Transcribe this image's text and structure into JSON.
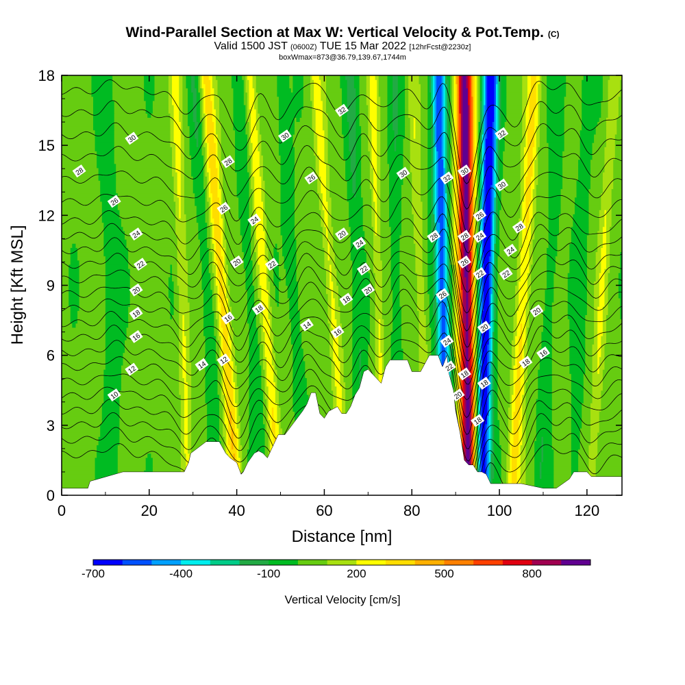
{
  "chart_data": {
    "type": "heatmap",
    "title": "Wind-Parallel Section at Max W: Vertical Velocity & Pot.Temp.",
    "title_mark": "(C)",
    "subtitle_valid": "Valid 1500 JST",
    "subtitle_utc": "(0600Z)",
    "subtitle_date": "TUE 15 Mar 2022",
    "subtitle_fcst": "[12hrFcst@2230z]",
    "subtitle_box": "boxWmax=873@36.79,139.67,1744m",
    "xlabel": "Distance [nm]",
    "ylabel": "Height [Kft MSL]",
    "xlim": [
      0,
      128
    ],
    "ylim": [
      0,
      18
    ],
    "x_ticks": [
      "0",
      "20",
      "40",
      "60",
      "80",
      "100",
      "120"
    ],
    "y_ticks": [
      "0",
      "3",
      "6",
      "9",
      "12",
      "15",
      "18"
    ],
    "colorbar_label": "Vertical Velocity [cm/s]",
    "colorbar_ticks": [
      "-700",
      "-400",
      "-100",
      "200",
      "500",
      "800"
    ],
    "colorbar_levels": [
      -700,
      -600,
      -500,
      -400,
      -300,
      -200,
      -100,
      0,
      100,
      200,
      300,
      400,
      500,
      600,
      700,
      800,
      900
    ],
    "colorbar_colors": [
      "#0000ff",
      "#0050ff",
      "#00a0ff",
      "#00eeee",
      "#00cc88",
      "#22aa44",
      "#00bb22",
      "#66cc11",
      "#a8e010",
      "#ffff00",
      "#ffdd00",
      "#ffb000",
      "#ff8000",
      "#ff4000",
      "#e00010",
      "#a00050",
      "#600090"
    ],
    "terrain": {
      "x": [
        0,
        6,
        6.5,
        14,
        28,
        29,
        29.5,
        33,
        34,
        36,
        37.5,
        38.5,
        40,
        41,
        41.5,
        42.5,
        44,
        45,
        46,
        47,
        48.5,
        49.5,
        51,
        53,
        55,
        56,
        57,
        58,
        59,
        60,
        61,
        62,
        63,
        64,
        65,
        66,
        67,
        68,
        69,
        70,
        71,
        72,
        73,
        74,
        75,
        79,
        80,
        82,
        84,
        85,
        86,
        87,
        88,
        88.5,
        89.5,
        90,
        91,
        92,
        93,
        94,
        95,
        96,
        97,
        98,
        99,
        100,
        101,
        102,
        103,
        104,
        105,
        110,
        113,
        116,
        117,
        120,
        121,
        128
      ],
      "y": [
        0.3,
        0.3,
        0.6,
        1.0,
        1.0,
        1.4,
        1.8,
        2.3,
        2.3,
        2.3,
        1.8,
        1.6,
        1.4,
        0.9,
        1.0,
        1.4,
        1.8,
        1.9,
        1.8,
        1.6,
        2.2,
        2.6,
        2.6,
        3.1,
        3.6,
        3.9,
        4.4,
        4.4,
        3.5,
        3.3,
        3.6,
        3.7,
        3.8,
        3.5,
        3.5,
        3.8,
        4.3,
        4.6,
        5.3,
        5.4,
        5.2,
        5.0,
        4.8,
        5.5,
        5.8,
        5.8,
        5.3,
        5.3,
        6.0,
        6.0,
        6.0,
        5.5,
        6.0,
        5.2,
        4.5,
        3.6,
        2.7,
        1.5,
        1.3,
        1.3,
        1.0,
        1.0,
        0.9,
        0.5,
        0.5,
        0.5,
        0.5,
        0.5,
        0.5,
        0.5,
        0.5,
        0.3,
        0.3,
        0.7,
        1.0,
        1.0,
        0.8,
        0.8
      ]
    },
    "updraft_bands": [
      {
        "x_base": 93,
        "x_top": 92,
        "half_width": 2.0,
        "w": 900
      },
      {
        "x_base": 40,
        "x_top": 33,
        "half_width": 1.5,
        "w": 350
      },
      {
        "x_base": 49.5,
        "x_top": 43,
        "half_width": 1.3,
        "w": 250
      },
      {
        "x_base": 103,
        "x_top": 108,
        "half_width": 1.5,
        "w": 300
      },
      {
        "x_base": 65,
        "x_top": 58,
        "half_width": 1.3,
        "w": 200
      },
      {
        "x_base": 29,
        "x_top": 26,
        "half_width": 1.2,
        "w": 180
      },
      {
        "x_base": 73.5,
        "x_top": 71,
        "half_width": 1.0,
        "w": 200
      },
      {
        "x_base": 84,
        "x_top": 80,
        "half_width": 1.2,
        "w": 150
      },
      {
        "x_base": 121,
        "x_top": 126,
        "half_width": 1.2,
        "w": 150
      }
    ],
    "downdraft_bands": [
      {
        "x_base": 88,
        "x_top": 86,
        "half_width": 1.7,
        "w": -600
      },
      {
        "x_base": 96,
        "x_top": 98,
        "half_width": 1.8,
        "w": -750
      },
      {
        "x_base": 12,
        "x_top": 10,
        "half_width": 2.0,
        "w": -100
      },
      {
        "x_base": 36,
        "x_top": 30,
        "half_width": 1.5,
        "w": -120
      },
      {
        "x_base": 46,
        "x_top": 40,
        "half_width": 1.5,
        "w": -120
      },
      {
        "x_base": 56,
        "x_top": 50,
        "half_width": 1.5,
        "w": -120
      },
      {
        "x_base": 69,
        "x_top": 66,
        "half_width": 1.5,
        "w": -150
      },
      {
        "x_base": 77,
        "x_top": 76,
        "half_width": 1.5,
        "w": -120
      },
      {
        "x_base": 109,
        "x_top": 114,
        "half_width": 1.5,
        "w": -120
      },
      {
        "x_base": 117,
        "x_top": 120,
        "half_width": 1.5,
        "w": -100
      }
    ],
    "theta_contours": {
      "levels": [
        8,
        9,
        10,
        11,
        12,
        13,
        14,
        15,
        16,
        17,
        18,
        19,
        20,
        21,
        22,
        23,
        24,
        25,
        26,
        27,
        28,
        29,
        30,
        31,
        32,
        33,
        34
      ],
      "labels": [
        {
          "text": "30",
          "x": 16,
          "y": 15.3
        },
        {
          "text": "28",
          "x": 4,
          "y": 13.9
        },
        {
          "text": "26",
          "x": 12,
          "y": 12.6
        },
        {
          "text": "24",
          "x": 17,
          "y": 11.2
        },
        {
          "text": "22",
          "x": 18,
          "y": 9.9
        },
        {
          "text": "20",
          "x": 17,
          "y": 8.8
        },
        {
          "text": "18",
          "x": 17,
          "y": 7.8
        },
        {
          "text": "16",
          "x": 17,
          "y": 6.8
        },
        {
          "text": "12",
          "x": 16,
          "y": 5.4
        },
        {
          "text": "10",
          "x": 12,
          "y": 4.3
        },
        {
          "text": "14",
          "x": 32,
          "y": 5.6
        },
        {
          "text": "12",
          "x": 37,
          "y": 5.8
        },
        {
          "text": "16",
          "x": 38,
          "y": 7.6
        },
        {
          "text": "20",
          "x": 40,
          "y": 10.0
        },
        {
          "text": "26",
          "x": 37,
          "y": 12.3
        },
        {
          "text": "28",
          "x": 38,
          "y": 14.3
        },
        {
          "text": "24",
          "x": 44,
          "y": 11.8
        },
        {
          "text": "22",
          "x": 48,
          "y": 9.9
        },
        {
          "text": "18",
          "x": 45,
          "y": 8.0
        },
        {
          "text": "14",
          "x": 56,
          "y": 7.3
        },
        {
          "text": "16",
          "x": 63,
          "y": 7.0
        },
        {
          "text": "18",
          "x": 65,
          "y": 8.4
        },
        {
          "text": "20",
          "x": 64,
          "y": 11.2
        },
        {
          "text": "26",
          "x": 57,
          "y": 13.6
        },
        {
          "text": "30",
          "x": 51,
          "y": 15.4
        },
        {
          "text": "32",
          "x": 64,
          "y": 16.5
        },
        {
          "text": "24",
          "x": 68,
          "y": 10.8
        },
        {
          "text": "22",
          "x": 69,
          "y": 9.7
        },
        {
          "text": "20",
          "x": 70,
          "y": 8.8
        },
        {
          "text": "30",
          "x": 78,
          "y": 13.8
        },
        {
          "text": "32",
          "x": 88,
          "y": 13.6
        },
        {
          "text": "28",
          "x": 85,
          "y": 11.1
        },
        {
          "text": "26",
          "x": 87,
          "y": 8.6
        },
        {
          "text": "24",
          "x": 88,
          "y": 6.6
        },
        {
          "text": "22",
          "x": 88.5,
          "y": 5.5
        },
        {
          "text": "20",
          "x": 90.5,
          "y": 4.3
        },
        {
          "text": "18",
          "x": 92,
          "y": 5.2
        },
        {
          "text": "30",
          "x": 92,
          "y": 13.9
        },
        {
          "text": "28",
          "x": 92,
          "y": 11.1
        },
        {
          "text": "26",
          "x": 92,
          "y": 10.0
        },
        {
          "text": "26",
          "x": 95.5,
          "y": 12.0
        },
        {
          "text": "24",
          "x": 95.5,
          "y": 11.1
        },
        {
          "text": "22",
          "x": 95.5,
          "y": 9.5
        },
        {
          "text": "20",
          "x": 96.5,
          "y": 7.2
        },
        {
          "text": "18",
          "x": 96.5,
          "y": 4.8
        },
        {
          "text": "18",
          "x": 95,
          "y": 3.2
        },
        {
          "text": "32",
          "x": 100.5,
          "y": 15.5
        },
        {
          "text": "30",
          "x": 100.5,
          "y": 13.3
        },
        {
          "text": "28",
          "x": 104.5,
          "y": 11.5
        },
        {
          "text": "24",
          "x": 102.5,
          "y": 10.5
        },
        {
          "text": "22",
          "x": 101.5,
          "y": 9.5
        },
        {
          "text": "20",
          "x": 108.5,
          "y": 7.9
        },
        {
          "text": "18",
          "x": 106,
          "y": 5.7
        },
        {
          "text": "16",
          "x": 110,
          "y": 6.1
        }
      ]
    }
  }
}
